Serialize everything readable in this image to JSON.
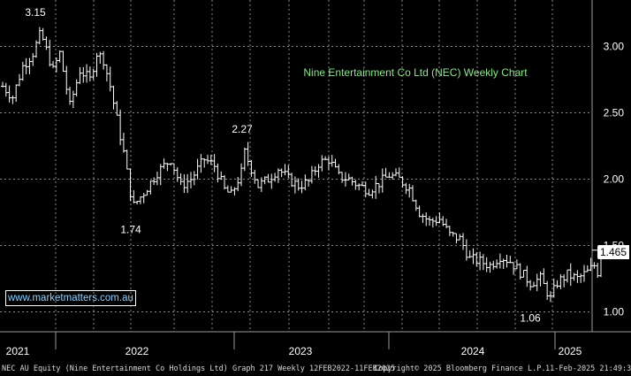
{
  "chart_data": {
    "type": "ohlc",
    "title": "Nine Entertainment Co Ltd (NEC) Weekly Chart",
    "ylim": [
      0.85,
      3.35
    ],
    "yticks": [
      {
        "value": 1.0,
        "label": "1.00"
      },
      {
        "value": 1.5,
        "label": "1.50"
      },
      {
        "value": 2.0,
        "label": "2.00"
      },
      {
        "value": 2.5,
        "label": "2.50"
      },
      {
        "value": 3.0,
        "label": "3.00"
      }
    ],
    "xticks": [
      "2021",
      "2022",
      "2023",
      "2024",
      "2025"
    ],
    "last_price": "1.465",
    "annotations": [
      {
        "label": "3.15",
        "value": 3.15
      },
      {
        "label": "1.74",
        "value": 1.74
      },
      {
        "label": "2.27",
        "value": 2.27
      },
      {
        "label": "1.06",
        "value": 1.06
      }
    ],
    "grid": true,
    "keypoints": [
      {
        "w": 0,
        "v": 2.7
      },
      {
        "w": 3,
        "v": 2.62
      },
      {
        "w": 6,
        "v": 2.85
      },
      {
        "w": 9,
        "v": 2.95
      },
      {
        "w": 11,
        "v": 3.08
      },
      {
        "w": 12,
        "v": 3.05
      },
      {
        "w": 15,
        "v": 2.82
      },
      {
        "w": 17,
        "v": 2.95
      },
      {
        "w": 20,
        "v": 2.55
      },
      {
        "w": 23,
        "v": 2.82
      },
      {
        "w": 26,
        "v": 2.75
      },
      {
        "w": 28,
        "v": 2.95
      },
      {
        "w": 30,
        "v": 2.9
      },
      {
        "w": 32,
        "v": 2.7
      },
      {
        "w": 34,
        "v": 2.45
      },
      {
        "w": 36,
        "v": 2.2
      },
      {
        "w": 38,
        "v": 1.9
      },
      {
        "w": 39,
        "v": 1.8
      },
      {
        "w": 42,
        "v": 1.9
      },
      {
        "w": 46,
        "v": 2.05
      },
      {
        "w": 50,
        "v": 2.15
      },
      {
        "w": 53,
        "v": 1.95
      },
      {
        "w": 56,
        "v": 2.0
      },
      {
        "w": 60,
        "v": 2.15
      },
      {
        "w": 63,
        "v": 2.1
      },
      {
        "w": 66,
        "v": 1.92
      },
      {
        "w": 68,
        "v": 1.88
      },
      {
        "w": 71,
        "v": 2.05
      },
      {
        "w": 72,
        "v": 2.2
      },
      {
        "w": 74,
        "v": 2.08
      },
      {
        "w": 76,
        "v": 1.95
      },
      {
        "w": 79,
        "v": 2.0
      },
      {
        "w": 82,
        "v": 2.08
      },
      {
        "w": 85,
        "v": 2.0
      },
      {
        "w": 88,
        "v": 1.95
      },
      {
        "w": 91,
        "v": 1.98
      },
      {
        "w": 94,
        "v": 2.12
      },
      {
        "w": 97,
        "v": 2.15
      },
      {
        "w": 100,
        "v": 2.02
      },
      {
        "w": 103,
        "v": 2.0
      },
      {
        "w": 106,
        "v": 1.95
      },
      {
        "w": 109,
        "v": 1.92
      },
      {
        "w": 112,
        "v": 1.97
      },
      {
        "w": 115,
        "v": 2.03
      },
      {
        "w": 118,
        "v": 2.0
      },
      {
        "w": 121,
        "v": 1.93
      },
      {
        "w": 124,
        "v": 1.75
      },
      {
        "w": 127,
        "v": 1.68
      },
      {
        "w": 130,
        "v": 1.7
      },
      {
        "w": 133,
        "v": 1.58
      },
      {
        "w": 136,
        "v": 1.55
      },
      {
        "w": 139,
        "v": 1.4
      },
      {
        "w": 142,
        "v": 1.38
      },
      {
        "w": 145,
        "v": 1.35
      },
      {
        "w": 148,
        "v": 1.42
      },
      {
        "w": 151,
        "v": 1.38
      },
      {
        "w": 154,
        "v": 1.3
      },
      {
        "w": 157,
        "v": 1.22
      },
      {
        "w": 160,
        "v": 1.25
      },
      {
        "w": 162,
        "v": 1.15
      },
      {
        "w": 163,
        "v": 1.1
      },
      {
        "w": 165,
        "v": 1.22
      },
      {
        "w": 168,
        "v": 1.28
      },
      {
        "w": 171,
        "v": 1.25
      },
      {
        "w": 174,
        "v": 1.3
      },
      {
        "w": 176,
        "v": 1.35
      },
      {
        "w": 177,
        "v": 1.3
      },
      {
        "w": 178,
        "v": 1.465
      }
    ]
  },
  "watermark": "www.marketmatters.com.au",
  "footer": {
    "left": "NEC AU Equity (Nine Entertainment Co Holdings Ltd) Graph 217  Weekly 12FEB2022-11FEB2025",
    "center": "Copyright© 2025 Bloomberg Finance L.P.",
    "right": "11-Feb-2025 21:49:35"
  }
}
